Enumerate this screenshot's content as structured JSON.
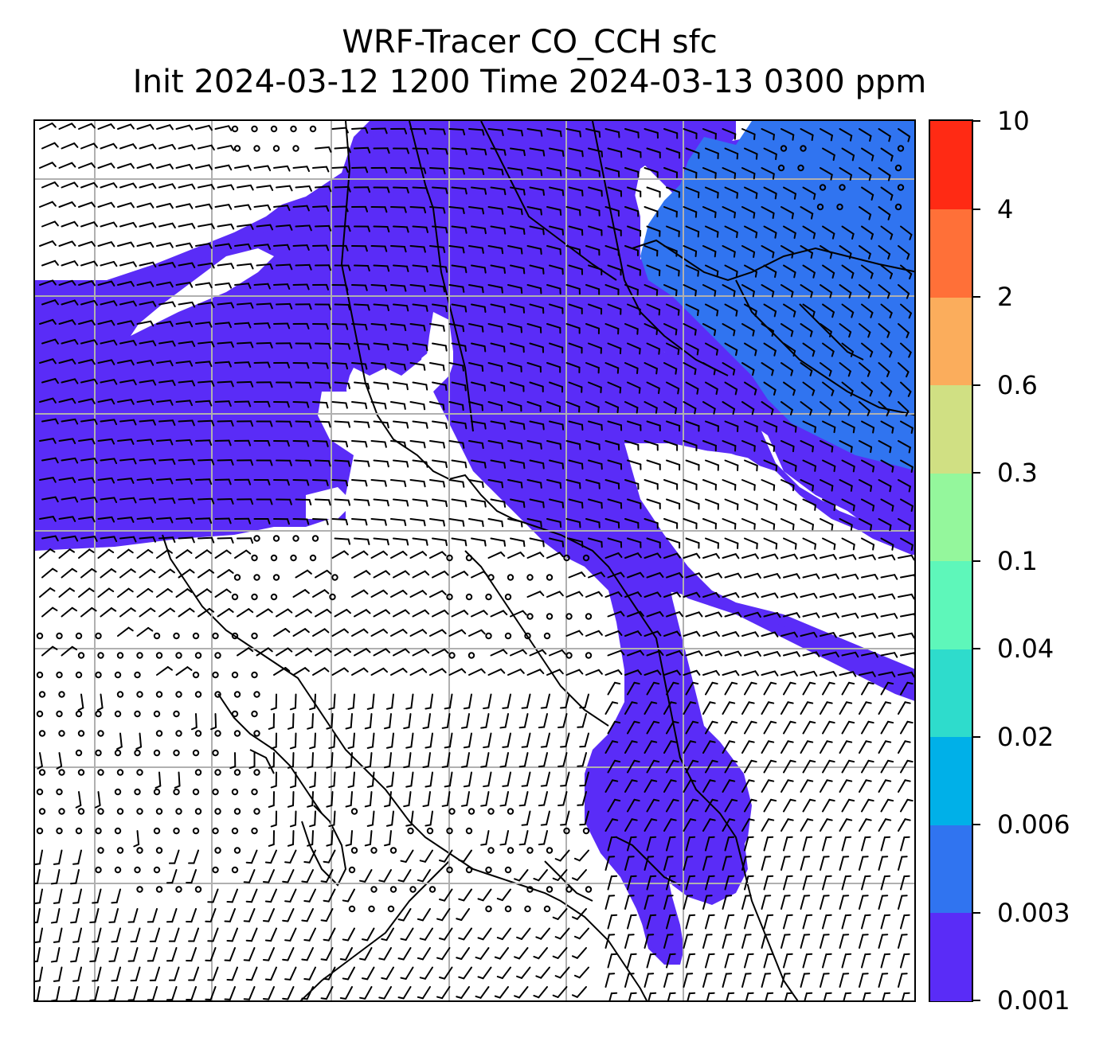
{
  "title": {
    "line1": "WRF-Tracer CO_CCH sfc",
    "line2": "Init 2024-03-12 1200 Time 2024-03-13 0300 ppm"
  },
  "colorbar": {
    "labels": [
      "0.001",
      "0.003",
      "0.006",
      "0.02",
      "0.04",
      "0.1",
      "0.3",
      "0.6",
      "2",
      "4",
      "10"
    ],
    "colors": [
      "#5a2cf7",
      "#3074f0",
      "#00b0e8",
      "#2edccc",
      "#5ef7ba",
      "#94f79c",
      "#d0e083",
      "#fbad5c",
      "#ff7038",
      "#ff2a14"
    ]
  },
  "map": {
    "plume_color": "#5a2cf7",
    "north_region_color": "#3074f0",
    "grid_color": "#b0b0b0",
    "coast_color": "#000000",
    "barb_color": "#000000"
  }
}
